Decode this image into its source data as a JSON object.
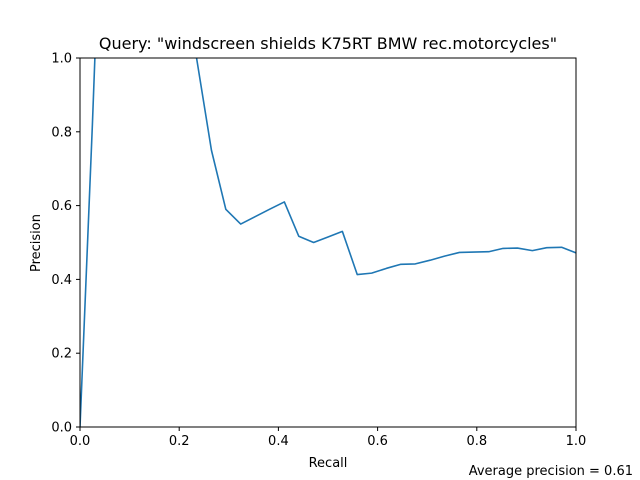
{
  "chart_data": {
    "type": "line",
    "title": "Query: \"windscreen shields K75RT BMW rec.motorcycles\"",
    "xlabel": "Recall",
    "ylabel": "Precision",
    "xlim": [
      0.0,
      1.0
    ],
    "ylim": [
      0.0,
      1.0
    ],
    "xticks": [
      "0.0",
      "0.2",
      "0.4",
      "0.6",
      "0.8",
      "1.0"
    ],
    "yticks": [
      "0.0",
      "0.2",
      "0.4",
      "0.6",
      "0.8",
      "1.0"
    ],
    "grid": false,
    "line_color": "#1f77b4",
    "series": [
      {
        "x": [
          0.0,
          0.025,
          0.03,
          0.035,
          0.22,
          0.235,
          0.265,
          0.294,
          0.324,
          0.353,
          0.382,
          0.412,
          0.441,
          0.471,
          0.5,
          0.529,
          0.559,
          0.588,
          0.618,
          0.647,
          0.676,
          0.706,
          0.735,
          0.765,
          0.794,
          0.824,
          0.853,
          0.882,
          0.912,
          0.941,
          0.971,
          1.0
        ],
        "y": [
          0.0,
          0.82,
          1.0,
          1.05,
          1.05,
          1.0,
          0.75,
          0.59,
          0.55,
          0.57,
          0.59,
          0.61,
          0.517,
          0.5,
          0.515,
          0.53,
          0.413,
          0.417,
          0.43,
          0.441,
          0.442,
          0.452,
          0.463,
          0.473,
          0.474,
          0.475,
          0.484,
          0.485,
          0.478,
          0.486,
          0.487,
          0.472
        ]
      }
    ],
    "annotation": "Average precision = 0.61"
  }
}
